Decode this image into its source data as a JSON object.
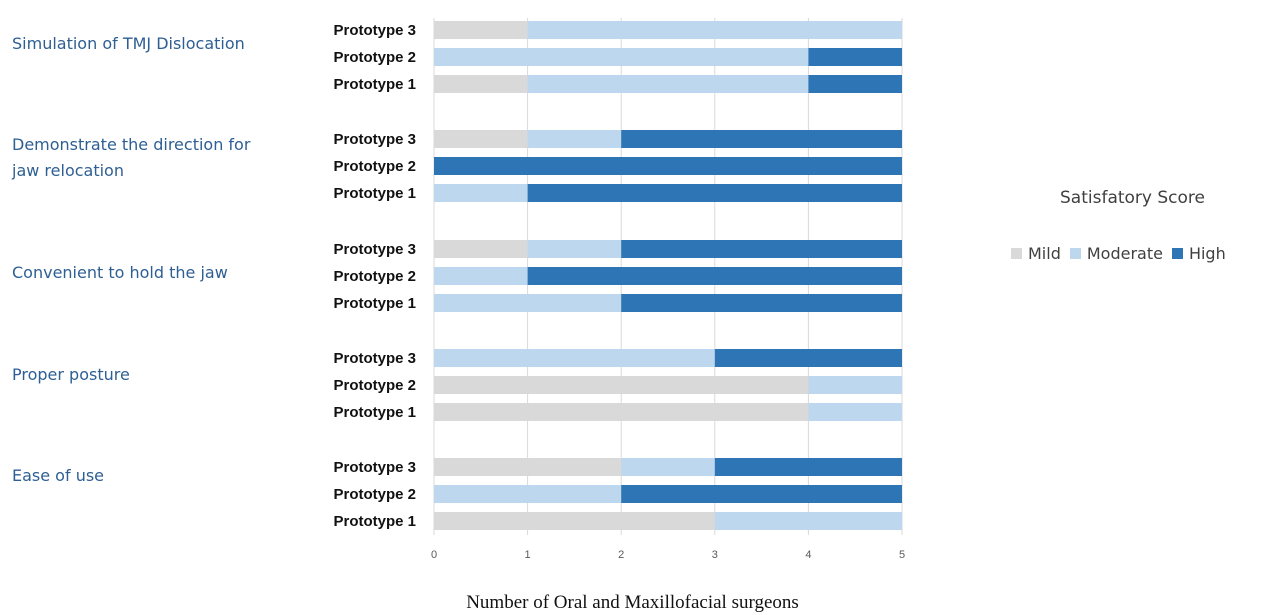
{
  "chart_data": {
    "type": "bar",
    "orientation": "horizontal",
    "stacked": true,
    "legend_title": "Satisfatory Score",
    "legend_position": "right",
    "xlabel": "Number of Oral and Maxillofacial surgeons",
    "xlim": [
      0,
      5
    ],
    "xticks": [
      0,
      1,
      2,
      3,
      4,
      5
    ],
    "grid": true,
    "series": [
      {
        "name": "Mild",
        "color": "#d9d9d9"
      },
      {
        "name": "Moderate",
        "color": "#bdd7ee"
      },
      {
        "name": "High",
        "color": "#2e75b6"
      }
    ],
    "groups": [
      {
        "label": "Simulation of TMJ Dislocation",
        "bars": [
          {
            "label": "Prototype 3",
            "values": [
              1,
              4,
              0
            ]
          },
          {
            "label": "Prototype 2",
            "values": [
              0,
              4,
              1
            ]
          },
          {
            "label": "Prototype 1",
            "values": [
              1,
              3,
              1
            ]
          }
        ]
      },
      {
        "label": "Demonstrate the direction for jaw relocation",
        "bars": [
          {
            "label": "Prototype 3",
            "values": [
              1,
              1,
              3
            ]
          },
          {
            "label": "Prototype 2",
            "values": [
              0,
              0,
              5
            ]
          },
          {
            "label": "Prototype 1",
            "values": [
              0,
              1,
              4
            ]
          }
        ]
      },
      {
        "label": "Convenient to hold the jaw",
        "bars": [
          {
            "label": "Prototype 3",
            "values": [
              1,
              1,
              3
            ]
          },
          {
            "label": "Prototype 2",
            "values": [
              0,
              1,
              4
            ]
          },
          {
            "label": "Prototype 1",
            "values": [
              0,
              2,
              3
            ]
          }
        ]
      },
      {
        "label": "Proper posture",
        "bars": [
          {
            "label": "Prototype 3",
            "values": [
              0,
              3,
              2
            ]
          },
          {
            "label": "Prototype 2",
            "values": [
              4,
              1,
              0
            ]
          },
          {
            "label": "Prototype 1",
            "values": [
              4,
              1,
              0
            ]
          }
        ]
      },
      {
        "label": "Ease of use",
        "bars": [
          {
            "label": "Prototype 3",
            "values": [
              2,
              1,
              2
            ]
          },
          {
            "label": "Prototype 2",
            "values": [
              0,
              2,
              3
            ]
          },
          {
            "label": "Prototype 1",
            "values": [
              3,
              2,
              0
            ]
          }
        ]
      }
    ]
  }
}
